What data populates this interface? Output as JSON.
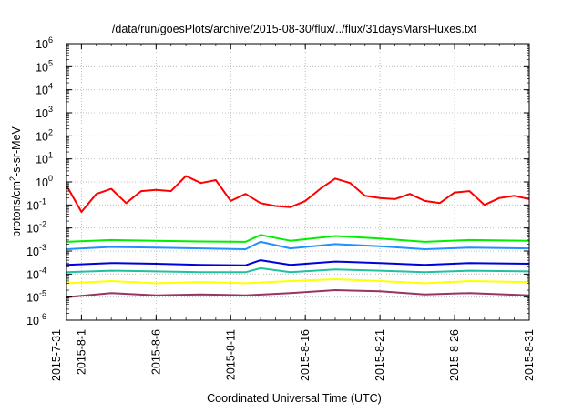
{
  "chart_data": {
    "type": "line",
    "title": "/data/run/goesPlots/archive/2015-08-30/flux/../flux/31daysMarsFluxes.txt",
    "xlabel": "Coordinated Universal Time (UTC)",
    "ylabel_parts": [
      "protons/cm",
      "2",
      "-s-sr-MeV"
    ],
    "y_scale": "log",
    "ylim": [
      1e-06,
      1000000.0
    ],
    "y_ticks": [
      {
        "base": "10",
        "exp": "-6",
        "value": 1e-06
      },
      {
        "base": "10",
        "exp": "-5",
        "value": 1e-05
      },
      {
        "base": "10",
        "exp": "-4",
        "value": 0.0001
      },
      {
        "base": "10",
        "exp": "-3",
        "value": 0.001
      },
      {
        "base": "10",
        "exp": "-2",
        "value": 0.01
      },
      {
        "base": "10",
        "exp": "-1",
        "value": 0.1
      },
      {
        "base": "10",
        "exp": "0",
        "value": 1
      },
      {
        "base": "10",
        "exp": "1",
        "value": 10.0
      },
      {
        "base": "10",
        "exp": "2",
        "value": 100.0
      },
      {
        "base": "10",
        "exp": "3",
        "value": 1000.0
      },
      {
        "base": "10",
        "exp": "4",
        "value": 10000.0
      },
      {
        "base": "10",
        "exp": "5",
        "value": 100000.0
      },
      {
        "base": "10",
        "exp": "6",
        "value": 1000000.0
      }
    ],
    "xlim": [
      "2015-07-31",
      "2015-08-31"
    ],
    "x_ticks": [
      {
        "label": "2015-7-31",
        "date": "2015-07-31"
      },
      {
        "label": "2015-8-1",
        "date": "2015-08-01"
      },
      {
        "label": "2015-8-6",
        "date": "2015-08-06"
      },
      {
        "label": "2015-8-11",
        "date": "2015-08-11"
      },
      {
        "label": "2015-8-16",
        "date": "2015-08-16"
      },
      {
        "label": "2015-8-21",
        "date": "2015-08-21"
      },
      {
        "label": "2015-8-26",
        "date": "2015-08-26"
      },
      {
        "label": "2015-8-31",
        "date": "2015-08-31"
      }
    ],
    "grid": true,
    "series": [
      {
        "color": "#ff0000",
        "points": [
          [
            "2015-07-31",
            0.7
          ],
          [
            "2015-08-01",
            0.05
          ],
          [
            "2015-08-02",
            0.3
          ],
          [
            "2015-08-03",
            0.5
          ],
          [
            "2015-08-04",
            0.12
          ],
          [
            "2015-08-05",
            0.4
          ],
          [
            "2015-08-06",
            0.45
          ],
          [
            "2015-08-07",
            0.4
          ],
          [
            "2015-08-08",
            1.8
          ],
          [
            "2015-08-09",
            0.9
          ],
          [
            "2015-08-10",
            1.2
          ],
          [
            "2015-08-11",
            0.15
          ],
          [
            "2015-08-12",
            0.3
          ],
          [
            "2015-08-13",
            0.12
          ],
          [
            "2015-08-14",
            0.09
          ],
          [
            "2015-08-15",
            0.08
          ],
          [
            "2015-08-16",
            0.15
          ],
          [
            "2015-08-17",
            0.5
          ],
          [
            "2015-08-18",
            1.4
          ],
          [
            "2015-08-19",
            0.9
          ],
          [
            "2015-08-20",
            0.25
          ],
          [
            "2015-08-21",
            0.2
          ],
          [
            "2015-08-22",
            0.18
          ],
          [
            "2015-08-23",
            0.3
          ],
          [
            "2015-08-24",
            0.15
          ],
          [
            "2015-08-25",
            0.12
          ],
          [
            "2015-08-26",
            0.35
          ],
          [
            "2015-08-27",
            0.4
          ],
          [
            "2015-08-28",
            0.1
          ],
          [
            "2015-08-29",
            0.2
          ],
          [
            "2015-08-30",
            0.25
          ],
          [
            "2015-08-31",
            0.18
          ]
        ]
      },
      {
        "color": "#00ee00",
        "points": [
          [
            "2015-07-31",
            0.0025
          ],
          [
            "2015-08-03",
            0.003
          ],
          [
            "2015-08-06",
            0.0028
          ],
          [
            "2015-08-09",
            0.0026
          ],
          [
            "2015-08-12",
            0.0025
          ],
          [
            "2015-08-13",
            0.005
          ],
          [
            "2015-08-15",
            0.0028
          ],
          [
            "2015-08-18",
            0.0045
          ],
          [
            "2015-08-21",
            0.0035
          ],
          [
            "2015-08-24",
            0.0025
          ],
          [
            "2015-08-27",
            0.003
          ],
          [
            "2015-08-31",
            0.0028
          ]
        ]
      },
      {
        "color": "#1e90ff",
        "points": [
          [
            "2015-07-31",
            0.0012
          ],
          [
            "2015-08-03",
            0.0015
          ],
          [
            "2015-08-06",
            0.0014
          ],
          [
            "2015-08-09",
            0.0013
          ],
          [
            "2015-08-12",
            0.0012
          ],
          [
            "2015-08-13",
            0.0025
          ],
          [
            "2015-08-15",
            0.0013
          ],
          [
            "2015-08-18",
            0.002
          ],
          [
            "2015-08-21",
            0.0016
          ],
          [
            "2015-08-24",
            0.0012
          ],
          [
            "2015-08-27",
            0.0014
          ],
          [
            "2015-08-31",
            0.0013
          ]
        ]
      },
      {
        "color": "#0000dd",
        "points": [
          [
            "2015-07-31",
            0.00025
          ],
          [
            "2015-08-03",
            0.0003
          ],
          [
            "2015-08-06",
            0.00028
          ],
          [
            "2015-08-09",
            0.00025
          ],
          [
            "2015-08-12",
            0.00024
          ],
          [
            "2015-08-13",
            0.0004
          ],
          [
            "2015-08-15",
            0.00025
          ],
          [
            "2015-08-18",
            0.00035
          ],
          [
            "2015-08-21",
            0.0003
          ],
          [
            "2015-08-24",
            0.00025
          ],
          [
            "2015-08-27",
            0.0003
          ],
          [
            "2015-08-31",
            0.00028
          ]
        ]
      },
      {
        "color": "#20c0a0",
        "points": [
          [
            "2015-07-31",
            0.00012
          ],
          [
            "2015-08-03",
            0.00014
          ],
          [
            "2015-08-06",
            0.00013
          ],
          [
            "2015-08-09",
            0.00012
          ],
          [
            "2015-08-12",
            0.00012
          ],
          [
            "2015-08-13",
            0.00018
          ],
          [
            "2015-08-15",
            0.00012
          ],
          [
            "2015-08-18",
            0.00016
          ],
          [
            "2015-08-21",
            0.00014
          ],
          [
            "2015-08-24",
            0.00012
          ],
          [
            "2015-08-27",
            0.00014
          ],
          [
            "2015-08-31",
            0.00013
          ]
        ]
      },
      {
        "color": "#ffff00",
        "points": [
          [
            "2015-07-31",
            4e-05
          ],
          [
            "2015-08-03",
            5e-05
          ],
          [
            "2015-08-06",
            4e-05
          ],
          [
            "2015-08-09",
            4.5e-05
          ],
          [
            "2015-08-12",
            4e-05
          ],
          [
            "2015-08-15",
            5e-05
          ],
          [
            "2015-08-18",
            6e-05
          ],
          [
            "2015-08-21",
            5e-05
          ],
          [
            "2015-08-24",
            4e-05
          ],
          [
            "2015-08-27",
            5e-05
          ],
          [
            "2015-08-31",
            4.5e-05
          ]
        ]
      },
      {
        "color": "#993366",
        "points": [
          [
            "2015-07-31",
            1e-05
          ],
          [
            "2015-08-03",
            1.5e-05
          ],
          [
            "2015-08-06",
            1.2e-05
          ],
          [
            "2015-08-09",
            1.3e-05
          ],
          [
            "2015-08-12",
            1.2e-05
          ],
          [
            "2015-08-15",
            1.5e-05
          ],
          [
            "2015-08-18",
            2e-05
          ],
          [
            "2015-08-21",
            1.8e-05
          ],
          [
            "2015-08-24",
            1.3e-05
          ],
          [
            "2015-08-27",
            1.5e-05
          ],
          [
            "2015-08-31",
            1.2e-05
          ]
        ]
      }
    ]
  }
}
